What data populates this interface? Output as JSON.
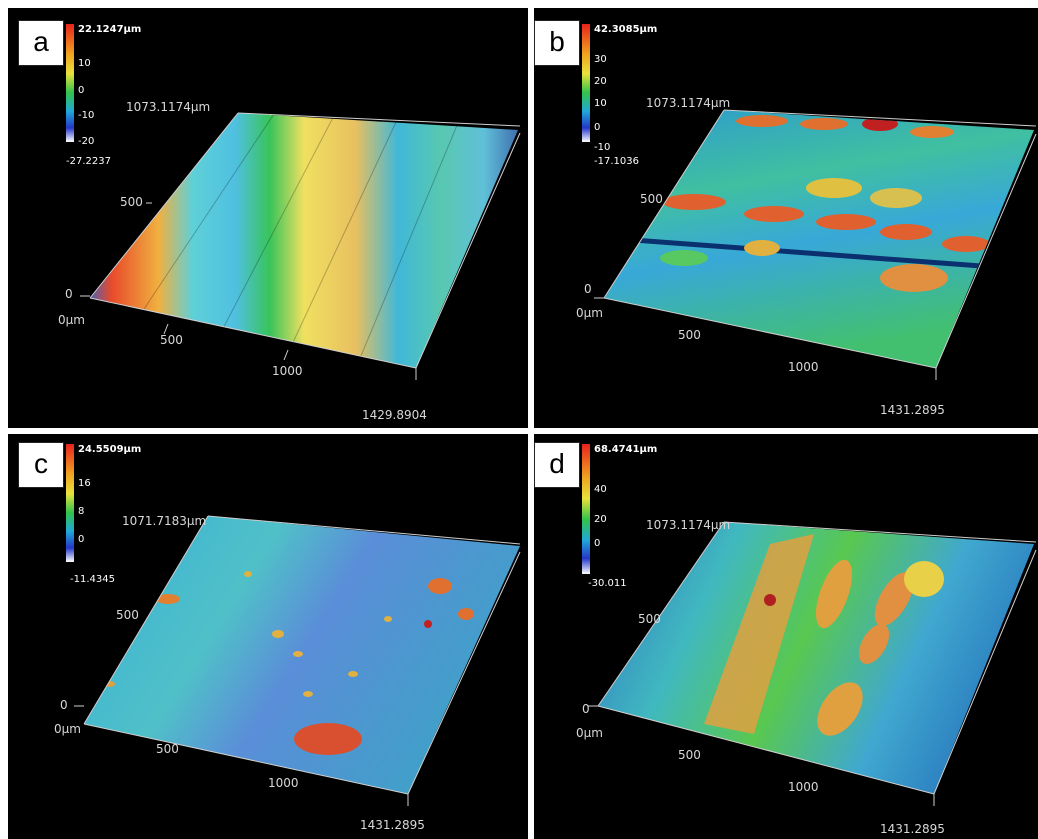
{
  "panels": [
    {
      "id": "a",
      "letter": "a",
      "scale_max": "22.1247µm",
      "scale_ticks": [
        "10",
        "0",
        "-10",
        "-20"
      ],
      "scale_min": "-27.2237",
      "y_extent": "1073.1174µm",
      "y_tick_500": "500",
      "y_tick_0": "0",
      "x_origin": "0µm",
      "x_tick_500": "500",
      "x_tick_1000": "1000",
      "x_extent": "1429.8904"
    },
    {
      "id": "b",
      "letter": "b",
      "scale_max": "42.3085µm",
      "scale_ticks": [
        "30",
        "20",
        "10",
        "0",
        "-10"
      ],
      "scale_min": "-17.1036",
      "y_extent": "1073.1174µm",
      "y_tick_500": "500",
      "y_tick_0": "0",
      "x_origin": "0µm",
      "x_tick_500": "500",
      "x_tick_1000": "1000",
      "x_extent": "1431.2895"
    },
    {
      "id": "c",
      "letter": "c",
      "scale_max": "24.5509µm",
      "scale_ticks": [
        "16",
        "8",
        "0"
      ],
      "scale_min": "-11.4345",
      "y_extent": "1071.7183µm",
      "y_tick_500": "500",
      "y_tick_0": "0",
      "x_origin": "0µm",
      "x_tick_500": "500",
      "x_tick_1000": "1000",
      "x_extent": "1431.2895"
    },
    {
      "id": "d",
      "letter": "d",
      "scale_max": "68.4741µm",
      "scale_ticks": [
        "40",
        "20",
        "0"
      ],
      "scale_min": "-30.011",
      "y_extent": "1073.1174µm",
      "y_tick_500": "500",
      "y_tick_0": "0",
      "x_origin": "0µm",
      "x_tick_500": "500",
      "x_tick_1000": "1000",
      "x_extent": "1431.2895"
    }
  ],
  "colors": {
    "background": "#000000",
    "border": "#ffffff",
    "scale_top": "#e8221e",
    "scale_high": "#f0a020",
    "scale_mid_high": "#e8e23a",
    "scale_mid": "#34c24a",
    "scale_mid_low": "#20a8d8",
    "scale_low": "#2437c8",
    "scale_bottom": "#ffffff"
  }
}
